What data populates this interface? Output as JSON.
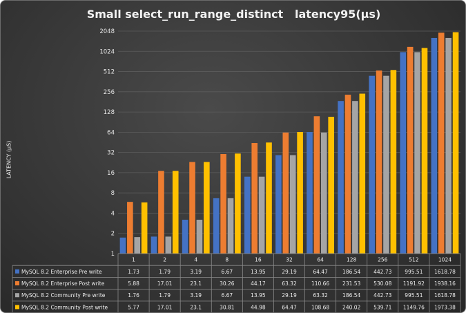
{
  "chart_data": {
    "type": "bar",
    "title": "Small select_run_range_distinct   latency95(µs)",
    "ylabel": "LATENCY (µS)",
    "yscale": "log2",
    "ylim": [
      1,
      2048
    ],
    "yticks": [
      "1",
      "2",
      "4",
      "8",
      "16",
      "32",
      "64",
      "128",
      "256",
      "512",
      "1024",
      "2048"
    ],
    "categories": [
      "1",
      "2",
      "4",
      "8",
      "16",
      "32",
      "64",
      "128",
      "256",
      "512",
      "1024"
    ],
    "legend_position": "table-bottom",
    "grid": true,
    "series": [
      {
        "name": "MySQL 8.2 Enterprise Pre write",
        "color": "#4472c4",
        "values": [
          1.73,
          1.79,
          3.19,
          6.67,
          13.95,
          29.19,
          64.47,
          186.54,
          442.73,
          995.51,
          1618.78
        ],
        "labels": [
          "1.73",
          "1.79",
          "3.19",
          "6.67",
          "13.95",
          "29.19",
          "64.47",
          "186.54",
          "442.73",
          "995.51",
          "1618.78"
        ]
      },
      {
        "name": "MySQL 8.2 Enterprise Post write",
        "color": "#ed7d31",
        "values": [
          5.88,
          17.01,
          23.1,
          30.26,
          44.17,
          63.32,
          110.66,
          231.53,
          530.08,
          1191.92,
          1938.16
        ],
        "labels": [
          "5.88",
          "17.01",
          "23.1",
          "30.26",
          "44.17",
          "63.32",
          "110.66",
          "231.53",
          "530.08",
          "1191.92",
          "1938.16"
        ]
      },
      {
        "name": "MySQL 8.2 Community Pre write",
        "color": "#a5a5a5",
        "values": [
          1.76,
          1.79,
          3.19,
          6.67,
          13.95,
          29.19,
          63.32,
          186.54,
          442.73,
          995.51,
          1618.78
        ],
        "labels": [
          "1.76",
          "1.79",
          "3.19",
          "6.67",
          "13.95",
          "29.19",
          "63.32",
          "186.54",
          "442.73",
          "995.51",
          "1618.78"
        ]
      },
      {
        "name": "MySQL 8.2 Community Post write",
        "color": "#ffc000",
        "values": [
          5.77,
          17.01,
          23.1,
          30.81,
          44.98,
          64.47,
          108.68,
          240.02,
          539.71,
          1149.76,
          1973.38
        ],
        "labels": [
          "5.77",
          "17.01",
          "23.1",
          "30.81",
          "44.98",
          "64.47",
          "108.68",
          "240.02",
          "539.71",
          "1149.76",
          "1973.38"
        ]
      }
    ]
  }
}
